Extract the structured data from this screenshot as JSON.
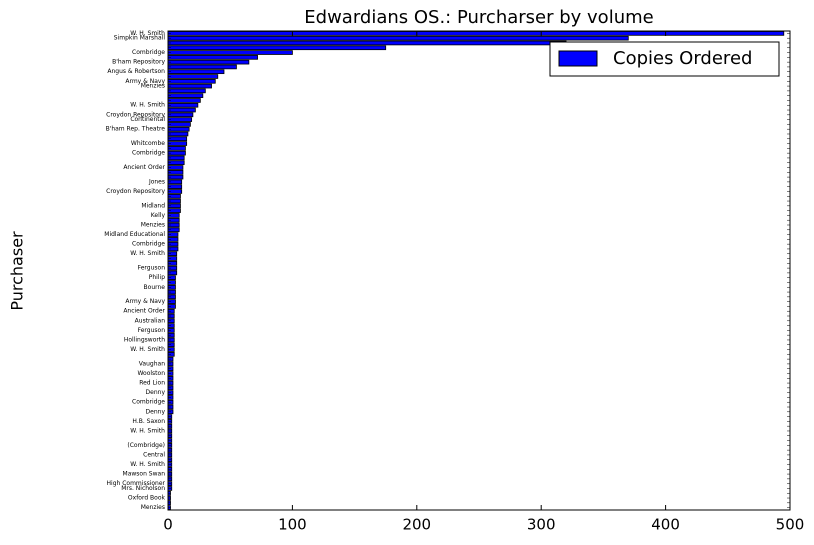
{
  "chart_data": {
    "type": "barh",
    "title": "Edwardians OS.: Purcharser by volume",
    "y_label": "Purchaser",
    "legend": "upper right",
    "series": [
      {
        "name": "Copies Ordered",
        "color": "#0000ff",
        "values": [
          495,
          370,
          320,
          175,
          100,
          72,
          65,
          55,
          45,
          40,
          38,
          35,
          30,
          28,
          26,
          24,
          22,
          20,
          19,
          18,
          17,
          16,
          15,
          15,
          14,
          14,
          13,
          13,
          12,
          12,
          12,
          11,
          11,
          11,
          10,
          10,
          10,
          10,
          9,
          9,
          9,
          9,
          8,
          8,
          8,
          8,
          7,
          7,
          7,
          7,
          7,
          6,
          6,
          6,
          6,
          6,
          6,
          6,
          5,
          5,
          5,
          5,
          5,
          5,
          5,
          5,
          5,
          5,
          4,
          4,
          4,
          4,
          4,
          4,
          4,
          4,
          4,
          4,
          4,
          4,
          3,
          3,
          3,
          3,
          3,
          3,
          3,
          3,
          3,
          3,
          3,
          3,
          3,
          3,
          3,
          3,
          2,
          2,
          2,
          2
        ]
      }
    ],
    "categories": [
      "W. H. Smith",
      "Simpkin Marshall",
      null,
      null,
      "Combridge",
      null,
      "B'ham Repository",
      null,
      "Angus & Robertson",
      null,
      "Army & Navy",
      "Menzies",
      null,
      null,
      null,
      "W. H. Smith",
      null,
      "Croydon Repository",
      "Continental",
      null,
      "B'ham Rep. Theatre",
      null,
      null,
      "Whitcombe",
      null,
      "Combridge",
      null,
      null,
      "Ancient Order",
      null,
      null,
      "Jones",
      null,
      "Croydon Repository",
      null,
      null,
      "Midland",
      null,
      "Kelly",
      null,
      "Menzies",
      null,
      "Midland Educational",
      null,
      "Combridge",
      null,
      "W. H. Smith",
      null,
      null,
      "Ferguson",
      null,
      "Philip",
      null,
      "Bourne",
      null,
      null,
      "Army & Navy",
      null,
      "Ancient Order",
      null,
      "Australian",
      null,
      "Ferguson",
      null,
      "Hollingsworth",
      null,
      "W. H. Smith",
      null,
      null,
      "Vaughan",
      null,
      "Woolston",
      null,
      "Red Lion",
      null,
      "Denny",
      null,
      "Combridge",
      null,
      "Denny",
      null,
      "H.B. Saxon",
      null,
      "W. H. Smith",
      null,
      null,
      "(Combridge)",
      null,
      "Central",
      null,
      "W. H. Smith",
      null,
      "Mawson Swan",
      null,
      "High Commissioner",
      "Mrs. Nicholson",
      null,
      "Oxford Book",
      null,
      "Menzies"
    ],
    "xlim": [
      0,
      500
    ],
    "xticks": [
      0,
      100,
      200,
      300,
      400,
      500
    ]
  }
}
